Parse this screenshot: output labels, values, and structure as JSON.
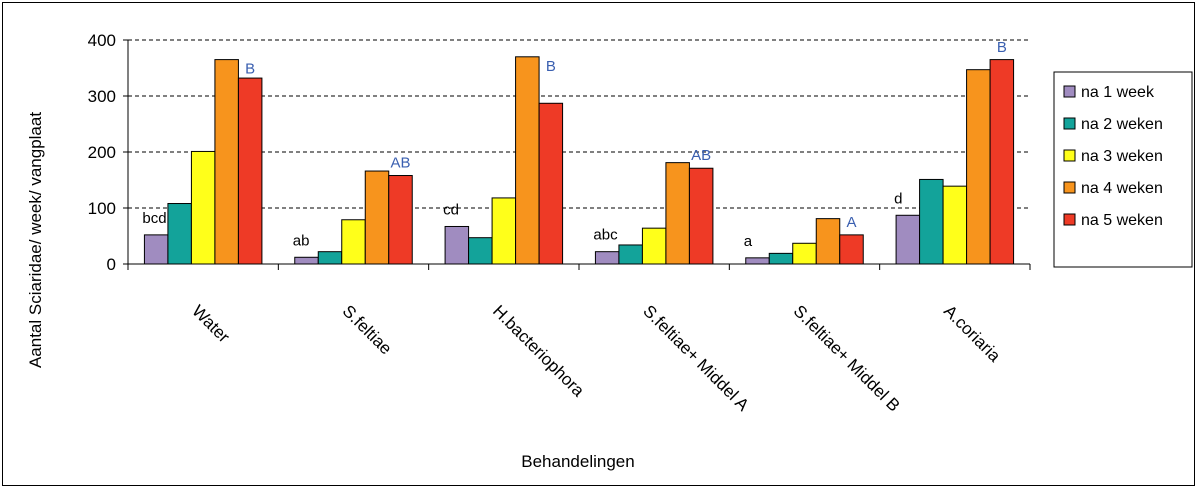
{
  "chart_data": {
    "type": "bar",
    "xlabel": "Behandelingen",
    "ylabel": "Aantal Sciaridae/ week/ vangplaat",
    "ylim": [
      0,
      400
    ],
    "yticks": [
      "0",
      "100",
      "200",
      "300",
      "400"
    ],
    "grid": "dashed horizontal",
    "legend_placement": "right",
    "categories": [
      "Water",
      "S.feltiae",
      "H.bacteriophora",
      "S.feltiae+ Middel A",
      "S.feltiae+ Middel B",
      "A.coriaria"
    ],
    "series": [
      {
        "name": "na 1 week",
        "color": "#a08cc0",
        "values": [
          52,
          12,
          67,
          22,
          11,
          87
        ]
      },
      {
        "name": "na 2 weken",
        "color": "#13a39a",
        "values": [
          108,
          22,
          47,
          34,
          19,
          151
        ]
      },
      {
        "name": "na 3 weken",
        "color": "#ffff1a",
        "values": [
          201,
          79,
          118,
          64,
          37,
          139
        ]
      },
      {
        "name": "na 4 weken",
        "color": "#f7941d",
        "values": [
          365,
          166,
          370,
          181,
          81,
          347
        ]
      },
      {
        "name": "na 5 weken",
        "color": "#ee3a26",
        "values": [
          332,
          158,
          287,
          171,
          52,
          365
        ]
      }
    ],
    "annotations": {
      "lower": [
        "bcd",
        "ab",
        "cd",
        "abc",
        "a",
        "d"
      ],
      "upper": [
        "B",
        "AB",
        "B",
        "AB",
        "A",
        "B"
      ]
    }
  }
}
